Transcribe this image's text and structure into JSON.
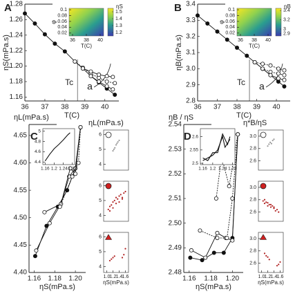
{
  "chart_data": [
    {
      "type": "line",
      "panel": "A",
      "xlabel": "T(C)",
      "ylabel": "ηS(mPa.s)",
      "annotations": [
        "Tc",
        "a"
      ],
      "xlim": [
        36,
        40.7
      ],
      "ylim": [
        1.155,
        1.28
      ],
      "xticks": [
        36,
        37,
        38,
        39,
        40
      ],
      "yticks": [
        1.16,
        1.18,
        {
          "value": 1.2,
          "label": "1.20"
        },
        1.22,
        1.24,
        1.26,
        1.28
      ],
      "series": [
        {
          "color": "#111",
          "marker": "filled",
          "x": [
            36,
            36.5,
            37,
            37.5,
            38,
            38.5,
            38.9,
            39.3,
            39.7,
            40.1,
            40.5
          ],
          "values": [
            1.268,
            1.255,
            1.241,
            1.229,
            1.219,
            1.206,
            1.197,
            1.187,
            1.179,
            1.171,
            1.163
          ]
        },
        {
          "color": "#111",
          "marker": "open",
          "dash": true,
          "x": [
            38.5,
            38.9,
            39.3,
            39.7,
            40.1,
            40.5
          ],
          "values": [
            1.206,
            1.198,
            1.19,
            1.185,
            1.18,
            1.178
          ]
        },
        {
          "color": "#111",
          "marker": "open",
          "x": [
            38.9,
            39.3,
            39.7,
            40.1,
            40.4
          ],
          "values": [
            1.197,
            1.193,
            1.189,
            1.187,
            1.186
          ]
        },
        {
          "color": "#111",
          "marker": "open",
          "x": [
            39.3,
            39.7,
            40.1,
            40.4
          ],
          "values": [
            1.187,
            1.18,
            1.174,
            1.17
          ]
        }
      ]
    },
    {
      "type": "heatmap",
      "xlabel": "T(C)",
      "ylabel": "φ",
      "xlim": [
        35.5,
        40.5
      ],
      "ylim": [
        0.01,
        0.105
      ],
      "xticks": [
        36,
        38,
        40
      ],
      "yticks": [
        0.1,
        0.08,
        0.06,
        0.04,
        0.02
      ],
      "clabel": "ηS",
      "clim": [
        1.15,
        1.55
      ],
      "cticks": [
        1.2,
        1.3,
        1.4,
        1.5
      ]
    },
    {
      "type": "line",
      "panel": "B",
      "xlabel": "T(C)",
      "ylabel": "ηB(mPa.s)",
      "annotations": [
        "Tc",
        "a"
      ],
      "xlim": [
        36,
        40.7
      ],
      "ylim": [
        2.8,
        3.4
      ],
      "xticks": [
        36,
        37,
        38,
        39,
        40
      ],
      "yticks": [
        2.8,
        2.9,
        {
          "value": 3,
          "label": "3.0"
        },
        3.1,
        3.2,
        3.3,
        3.4
      ],
      "series": [
        {
          "color": "#111",
          "marker": "filled",
          "x": [
            36,
            36.5,
            37,
            37.5,
            38,
            38.5,
            38.9,
            39.3,
            39.7,
            40.1,
            40.4
          ],
          "values": [
            3.33,
            3.28,
            3.23,
            3.18,
            3.13,
            3.08,
            3.04,
            3.0,
            2.96,
            2.92,
            2.89
          ]
        },
        {
          "color": "#111",
          "marker": "open",
          "dash": true,
          "x": [
            38.9,
            39.3,
            39.7,
            40.1,
            40.4
          ],
          "values": [
            3.04,
            3.03,
            3.02,
            3.0,
            2.99
          ]
        },
        {
          "color": "#111",
          "marker": "open",
          "dash": true,
          "x": [
            38.9,
            39.3,
            39.7,
            40.1,
            40.4
          ],
          "values": [
            3.04,
            3.0,
            2.98,
            2.97,
            2.96
          ]
        },
        {
          "color": "#111",
          "marker": "open",
          "x": [
            39.3,
            39.7,
            40.1,
            40.4
          ],
          "values": [
            3.0,
            2.96,
            2.94,
            2.93
          ]
        }
      ]
    },
    {
      "type": "heatmap",
      "xlabel": "T(C)",
      "ylabel": "φ",
      "xlim": [
        35.5,
        40.5
      ],
      "ylim": [
        0.01,
        0.105
      ],
      "xticks": [
        36,
        38,
        40
      ],
      "yticks": [
        0.1,
        0.08,
        0.06,
        0.04,
        0.02
      ],
      "clabel": "ηB",
      "clim": [
        2.85,
        3.45
      ],
      "cticks": [
        2.9,
        3,
        3.2,
        3.4
      ]
    },
    {
      "type": "line",
      "panel": "C",
      "xlabel": "ηS(mPa.s)",
      "ylabel": "ηL(mPa.s)",
      "xlim": [
        1.155,
        1.21
      ],
      "ylim": [
        4.4,
        4.67
      ],
      "xticks": [
        1.16,
        1.18,
        {
          "value": 1.2,
          "label": "1.20"
        }
      ],
      "yticks": [
        {
          "value": 4.4,
          "label": "4.40"
        },
        4.45,
        {
          "value": 4.5,
          "label": "4.50"
        },
        4.55,
        {
          "value": 4.6,
          "label": "4.60"
        },
        4.65
      ],
      "series": [
        {
          "color": "#111",
          "marker": "filled",
          "x": [
            1.161,
            1.172,
            1.183,
            1.192,
            1.2,
            1.205
          ],
          "values": [
            4.43,
            4.485,
            4.52,
            4.55,
            4.59,
            4.665
          ]
        },
        {
          "color": "#111",
          "marker": "open",
          "x": [
            1.162,
            1.175,
            1.186,
            1.194,
            1.2,
            1.205
          ],
          "values": [
            4.44,
            4.49,
            4.525,
            4.575,
            4.59,
            4.665
          ]
        },
        {
          "color": "#111",
          "marker": "open",
          "x": [
            1.17,
            1.186,
            1.195,
            1.2,
            1.205
          ],
          "values": [
            4.51,
            4.525,
            4.59,
            4.58,
            4.665
          ]
        },
        {
          "color": "#111",
          "marker": "open",
          "dash": true,
          "x": [
            1.185,
            1.197,
            1.203,
            1.205
          ],
          "values": [
            4.52,
            4.575,
            4.6,
            4.665
          ]
        }
      ]
    },
    {
      "type": "line",
      "xlim": [
        1.15,
        1.29
      ],
      "ylim": [
        4.35,
        5.05
      ],
      "xticks": [
        1.16,
        1.2,
        1.24,
        1.28
      ],
      "yticks": [
        4.4,
        4.6,
        4.8,
        5
      ],
      "series": [
        {
          "color": "#111",
          "marker": "none",
          "x": [
            1.16,
            1.18,
            1.2,
            1.22,
            1.24,
            1.26,
            1.27
          ],
          "values": [
            4.42,
            4.55,
            4.66,
            4.74,
            4.83,
            4.93,
            4.97
          ]
        }
      ]
    },
    {
      "type": "scatter",
      "symbol": "open-circle",
      "ylabel": "ηL(mPa.s)",
      "xlim": [
        0.9,
        1.7
      ],
      "ylim": [
        3.6,
        6.3
      ],
      "yticks": [
        4,
        5,
        6
      ],
      "series": [
        {
          "color": "#999",
          "x": [
            1.2,
            1.23,
            1.26,
            1.3,
            1.33,
            1.36,
            1.4
          ],
          "values": [
            4.9,
            5.0,
            5.1,
            5.3,
            5.4,
            5.5,
            5.6
          ]
        }
      ]
    },
    {
      "type": "scatter",
      "symbol": "red-circle",
      "xlim": [
        0.9,
        1.7
      ],
      "ylim": [
        3.6,
        6.3
      ],
      "yticks": [
        4,
        5,
        6
      ],
      "series": [
        {
          "color": "#b02020",
          "x": [
            1.05,
            1.1,
            1.15,
            1.2,
            1.25,
            1.3,
            1.35,
            1.4,
            1.45,
            1.5,
            1.55,
            1.6,
            1.1,
            1.2,
            1.3,
            1.4,
            1.5
          ],
          "values": [
            4.4,
            4.6,
            4.7,
            4.9,
            5.0,
            5.2,
            5.1,
            5.3,
            5.4,
            5.2,
            5.5,
            5.6,
            4.3,
            4.5,
            4.8,
            4.9,
            5.1
          ]
        }
      ]
    },
    {
      "type": "scatter",
      "symbol": "red-triangle",
      "xlabel": "ηS(mPa.s)",
      "xlim": [
        0.9,
        1.7
      ],
      "ylim": [
        3.6,
        6.3
      ],
      "yticks": [
        4,
        5,
        6
      ],
      "xticks": [
        {
          "value": 1,
          "label": "1.0"
        },
        1.2,
        1.4,
        1.6
      ],
      "series": [
        {
          "color": "#b02020",
          "x": [
            1.1,
            1.15,
            1.2,
            1.25,
            1.5,
            1.55,
            1.6
          ],
          "values": [
            4.4,
            4.5,
            4.6,
            4.7,
            4.6,
            4.8,
            5.2
          ]
        }
      ]
    },
    {
      "type": "line",
      "panel": "D",
      "xlabel": "ηS(mPa.s)",
      "ylabel": "ηB / ηS",
      "xlim": [
        1.155,
        1.21
      ],
      "ylim": [
        2.48,
        2.54
      ],
      "xticks": [
        1.16,
        1.18,
        {
          "value": 1.2,
          "label": "1.20"
        }
      ],
      "yticks": [
        2.48,
        2.49,
        {
          "value": 2.5,
          "label": "2.50"
        },
        2.51,
        2.52,
        2.53,
        2.54
      ],
      "series": [
        {
          "color": "#111",
          "marker": "filled",
          "x": [
            1.161,
            1.172,
            1.183,
            1.192,
            1.2,
            1.205
          ],
          "values": [
            2.486,
            2.485,
            2.488,
            2.488,
            2.494,
            2.536
          ]
        },
        {
          "color": "#111",
          "marker": "open",
          "x": [
            1.162,
            1.175,
            1.186,
            1.194,
            1.2,
            1.205
          ],
          "values": [
            2.489,
            2.486,
            2.496,
            2.494,
            2.493,
            2.536
          ]
        },
        {
          "color": "#111",
          "marker": "open",
          "dash": true,
          "x": [
            1.17,
            1.186,
            1.195,
            1.2,
            1.205
          ],
          "values": [
            2.497,
            2.494,
            2.494,
            2.51,
            2.536
          ]
        },
        {
          "color": "#111",
          "marker": "open",
          "dash": true,
          "x": [
            1.185,
            1.19,
            1.197,
            1.205
          ],
          "values": [
            2.51,
            2.527,
            2.515,
            2.536
          ]
        }
      ]
    },
    {
      "type": "line",
      "xlim": [
        1.15,
        1.29
      ],
      "ylim": [
        2.495,
        2.63
      ],
      "xticks": [
        1.16,
        1.2,
        1.24,
        1.28
      ],
      "yticks": [
        2.5,
        2.55,
        2.6
      ],
      "series": [
        {
          "color": "#111",
          "marker": "none",
          "x": [
            1.16,
            1.18,
            1.2,
            1.22,
            1.24,
            1.25,
            1.27
          ],
          "values": [
            2.51,
            2.52,
            2.53,
            2.55,
            2.6,
            2.56,
            2.59
          ]
        },
        {
          "color": "#111",
          "marker": "none",
          "x": [
            1.16,
            1.18,
            1.2,
            1.22,
            1.24,
            1.26,
            1.27
          ],
          "values": [
            2.52,
            2.51,
            2.54,
            2.54,
            2.61,
            2.57,
            2.6
          ]
        }
      ]
    },
    {
      "type": "scatter",
      "symbol": "open-circle",
      "ylabel": "η*B/ηS",
      "xlim": [
        0.9,
        1.7
      ],
      "ylim": [
        2.45,
        3.1
      ],
      "yticks": [
        2.6,
        2.8,
        {
          "value": 3,
          "label": "3.0"
        }
      ],
      "series": [
        {
          "color": "#999",
          "x": [
            1.2,
            1.24,
            1.28,
            1.32,
            1.36,
            1.4
          ],
          "values": [
            2.84,
            2.87,
            2.9,
            2.88,
            2.93,
            2.95
          ]
        }
      ]
    },
    {
      "type": "scatter",
      "symbol": "red-circle",
      "xlim": [
        0.9,
        1.7
      ],
      "ylim": [
        2.45,
        3.1
      ],
      "yticks": [
        2.6,
        2.8,
        {
          "value": 3,
          "label": "3.0"
        }
      ],
      "series": [
        {
          "color": "#b02020",
          "x": [
            1.05,
            1.1,
            1.15,
            1.2,
            1.25,
            1.3,
            1.35,
            1.4,
            1.45,
            1.5,
            1.55,
            1.1,
            1.2,
            1.3,
            1.4
          ],
          "values": [
            2.78,
            2.74,
            2.76,
            2.7,
            2.72,
            2.68,
            2.7,
            2.66,
            2.62,
            2.64,
            2.6,
            2.8,
            2.75,
            2.72,
            2.68
          ]
        }
      ]
    },
    {
      "type": "scatter",
      "symbol": "red-triangle",
      "xlabel": "ηS(mPa.s)",
      "xlim": [
        0.9,
        1.7
      ],
      "ylim": [
        2.45,
        3.1
      ],
      "yticks": [
        2.6,
        2.8,
        {
          "value": 3,
          "label": "3.0"
        }
      ],
      "xticks": [
        {
          "value": 1,
          "label": "1.0"
        },
        1.2,
        1.4,
        1.6
      ],
      "series": [
        {
          "color": "#b02020",
          "x": [
            1.1,
            1.15,
            1.2,
            1.25,
            1.5,
            1.55,
            1.6
          ],
          "values": [
            2.76,
            2.72,
            2.7,
            2.66,
            2.56,
            2.58,
            2.62
          ]
        }
      ]
    }
  ]
}
